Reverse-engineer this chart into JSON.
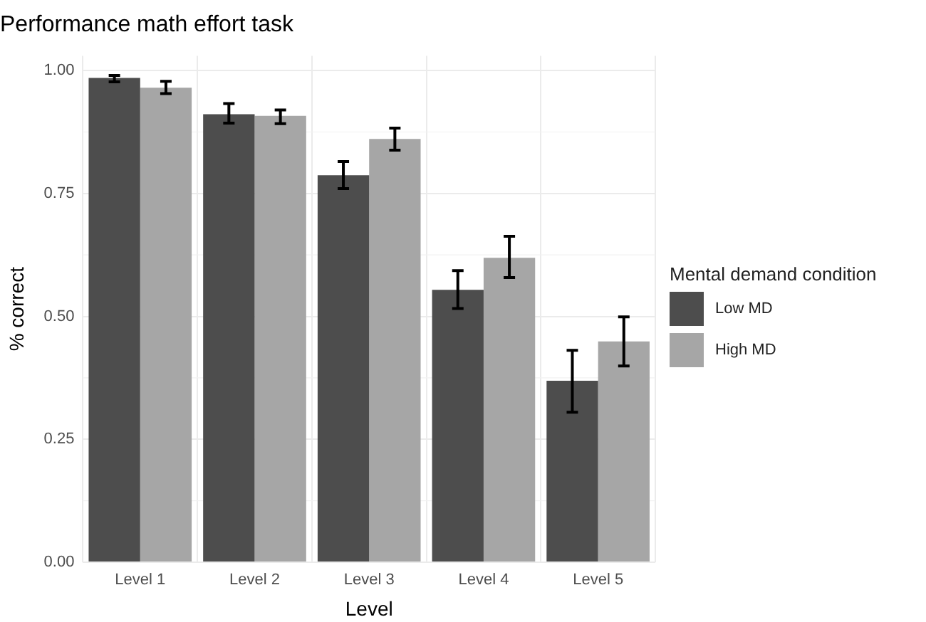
{
  "chart_data": {
    "type": "bar",
    "title": "Performance math effort task",
    "xlabel": "Level",
    "ylabel": "% correct",
    "legend_title": "Mental demand condition",
    "categories": [
      "Level 1",
      "Level 2",
      "Level 3",
      "Level 4",
      "Level 5"
    ],
    "series": [
      {
        "name": "Low MD",
        "color": "#4d4d4d",
        "values": [
          0.985,
          0.911,
          0.787,
          0.554,
          0.369
        ],
        "errors": [
          [
            0.977,
            0.99
          ],
          [
            0.893,
            0.933
          ],
          [
            0.76,
            0.815
          ],
          [
            0.516,
            0.593
          ],
          [
            0.305,
            0.431
          ]
        ]
      },
      {
        "name": "High MD",
        "color": "#a6a6a6",
        "values": [
          0.965,
          0.908,
          0.861,
          0.619,
          0.449
        ],
        "errors": [
          [
            0.953,
            0.978
          ],
          [
            0.892,
            0.92
          ],
          [
            0.838,
            0.883
          ],
          [
            0.579,
            0.663
          ],
          [
            0.399,
            0.499
          ]
        ]
      }
    ],
    "ylim": [
      0,
      1.03
    ],
    "yticks": [
      {
        "value": 0,
        "label": "0.00"
      },
      {
        "value": 0.25,
        "label": "0.25"
      },
      {
        "value": 0.5,
        "label": "0.50"
      },
      {
        "value": 0.75,
        "label": "0.75"
      },
      {
        "value": 1,
        "label": "1.00"
      }
    ],
    "grid": true,
    "legend": "right"
  }
}
